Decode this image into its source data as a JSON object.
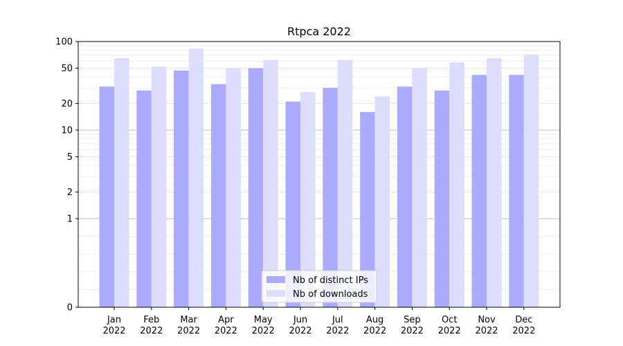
{
  "chart_data": {
    "type": "bar",
    "title": "Rtpca 2022",
    "xlabel": "",
    "ylabel": "",
    "y_scale": "symlog",
    "ylim": [
      0,
      100
    ],
    "y_ticks": [
      "0",
      "1",
      "2",
      "5",
      "10",
      "20",
      "50",
      "100"
    ],
    "grid": true,
    "legend_position": "bottom-center",
    "categories": [
      [
        "Jan",
        "2022"
      ],
      [
        "Feb",
        "2022"
      ],
      [
        "Mar",
        "2022"
      ],
      [
        "Apr",
        "2022"
      ],
      [
        "May",
        "2022"
      ],
      [
        "Jun",
        "2022"
      ],
      [
        "Jul",
        "2022"
      ],
      [
        "Aug",
        "2022"
      ],
      [
        "Sep",
        "2022"
      ],
      [
        "Oct",
        "2022"
      ],
      [
        "Nov",
        "2022"
      ],
      [
        "Dec",
        "2022"
      ]
    ],
    "series": [
      {
        "name": "Nb of distinct IPs",
        "color": "#aaaaff",
        "values": [
          31,
          28,
          47,
          33,
          50,
          21,
          30,
          16,
          31,
          28,
          42,
          42
        ]
      },
      {
        "name": "Nb of downloads",
        "color": "#ddddff",
        "values": [
          65,
          52,
          83,
          50,
          62,
          27,
          62,
          24,
          50,
          58,
          65,
          71
        ]
      }
    ]
  }
}
